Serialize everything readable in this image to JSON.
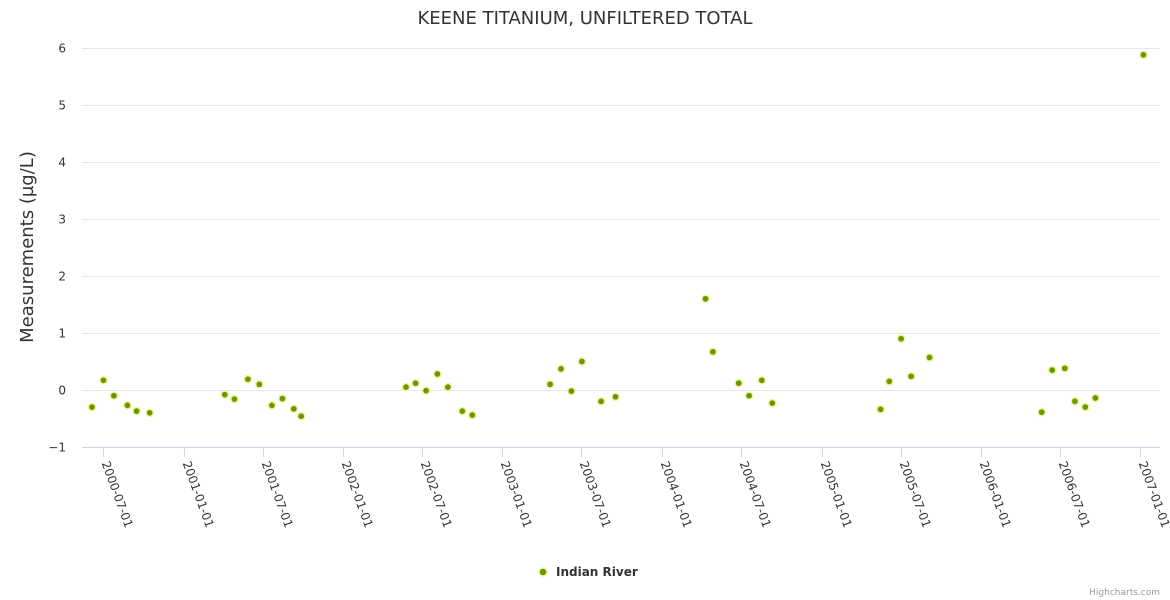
{
  "chart_data": {
    "type": "scatter",
    "title": "KEENE TITANIUM, UNFILTERED TOTAL",
    "ylabel": "Measurements (µg/L)",
    "xlabel": "",
    "ylim": [
      -1,
      6
    ],
    "yticks": [
      "−1",
      "0",
      "1",
      "2",
      "3",
      "4",
      "5",
      "6"
    ],
    "ytick_values": [
      -1,
      0,
      1,
      2,
      3,
      4,
      5,
      6
    ],
    "xlim": [
      "2000-05-13",
      "2007-02-15"
    ],
    "xticks": [
      "2000-07-01",
      "2001-01-01",
      "2001-07-01",
      "2002-01-01",
      "2002-07-01",
      "2003-01-01",
      "2003-07-01",
      "2004-01-01",
      "2004-07-01",
      "2005-01-01",
      "2005-07-01",
      "2006-01-01",
      "2006-07-01",
      "2007-01-01"
    ],
    "legend_position": "bottom-center",
    "series": [
      {
        "name": "Indian River",
        "color": "#669900",
        "points": [
          {
            "x": "2000-06-05",
            "y": -0.3
          },
          {
            "x": "2000-07-01",
            "y": 0.17
          },
          {
            "x": "2000-07-25",
            "y": -0.1
          },
          {
            "x": "2000-08-25",
            "y": -0.27
          },
          {
            "x": "2000-09-15",
            "y": -0.37
          },
          {
            "x": "2000-10-15",
            "y": -0.4
          },
          {
            "x": "2001-04-05",
            "y": -0.08
          },
          {
            "x": "2001-04-27",
            "y": -0.16
          },
          {
            "x": "2001-05-28",
            "y": 0.19
          },
          {
            "x": "2001-06-23",
            "y": 0.1
          },
          {
            "x": "2001-07-22",
            "y": -0.27
          },
          {
            "x": "2001-08-15",
            "y": -0.15
          },
          {
            "x": "2001-09-10",
            "y": -0.33
          },
          {
            "x": "2001-09-27",
            "y": -0.46
          },
          {
            "x": "2002-05-25",
            "y": 0.05
          },
          {
            "x": "2002-06-16",
            "y": 0.12
          },
          {
            "x": "2002-07-10",
            "y": -0.01
          },
          {
            "x": "2002-08-05",
            "y": 0.28
          },
          {
            "x": "2002-08-29",
            "y": 0.05
          },
          {
            "x": "2002-10-01",
            "y": -0.37
          },
          {
            "x": "2002-10-24",
            "y": -0.44
          },
          {
            "x": "2003-04-20",
            "y": 0.1
          },
          {
            "x": "2003-05-15",
            "y": 0.37
          },
          {
            "x": "2003-06-08",
            "y": -0.02
          },
          {
            "x": "2003-07-02",
            "y": 0.5
          },
          {
            "x": "2003-08-15",
            "y": -0.2
          },
          {
            "x": "2003-09-17",
            "y": -0.12
          },
          {
            "x": "2004-04-10",
            "y": 1.6
          },
          {
            "x": "2004-04-27",
            "y": 0.67
          },
          {
            "x": "2004-06-25",
            "y": 0.12
          },
          {
            "x": "2004-07-19",
            "y": -0.1
          },
          {
            "x": "2004-08-17",
            "y": 0.17
          },
          {
            "x": "2004-09-10",
            "y": -0.23
          },
          {
            "x": "2005-05-16",
            "y": -0.34
          },
          {
            "x": "2005-06-05",
            "y": 0.15
          },
          {
            "x": "2005-07-02",
            "y": 0.9
          },
          {
            "x": "2005-07-25",
            "y": 0.24
          },
          {
            "x": "2005-09-05",
            "y": 0.57
          },
          {
            "x": "2006-05-20",
            "y": -0.39
          },
          {
            "x": "2006-06-13",
            "y": 0.35
          },
          {
            "x": "2006-07-12",
            "y": 0.38
          },
          {
            "x": "2006-08-04",
            "y": -0.2
          },
          {
            "x": "2006-08-28",
            "y": -0.3
          },
          {
            "x": "2006-09-20",
            "y": -0.14
          },
          {
            "x": "2007-01-08",
            "y": 5.88
          }
        ]
      }
    ]
  },
  "credits": "Highcharts.com"
}
